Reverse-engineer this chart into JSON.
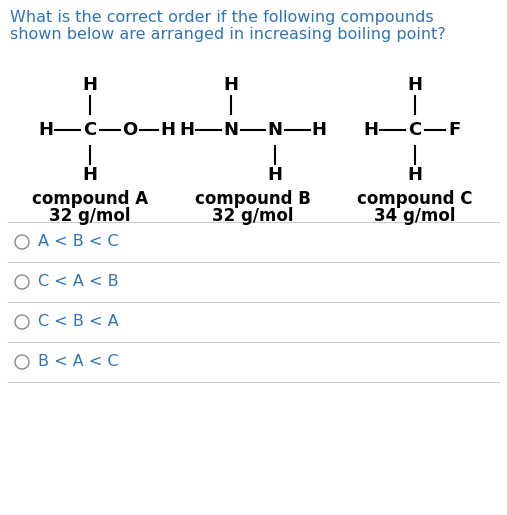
{
  "title_line1": "What is the correct order if the following compounds",
  "title_line2": "shown below are arranged in increasing boiling point?",
  "title_fontsize": 11.5,
  "title_color": "#2e74b5",
  "bg_color": "#ffffff",
  "compound_A": {
    "label": "compound A",
    "mw": "32 g/mol"
  },
  "compound_B": {
    "label": "compound B",
    "mw": "32 g/mol"
  },
  "compound_C": {
    "label": "compound C",
    "mw": "34 g/mol"
  },
  "options": [
    "A < B < C",
    "C < A < B",
    "C < B < A",
    "B < A < C"
  ],
  "option_fontsize": 11.5,
  "option_color": "#2e74b5",
  "structure_fontsize": 13,
  "label_fontsize": 12,
  "mw_fontsize": 12,
  "divider_color": "#cccccc",
  "text_color": "#000000",
  "bond_color": "#000000",
  "circle_color": "#888888"
}
